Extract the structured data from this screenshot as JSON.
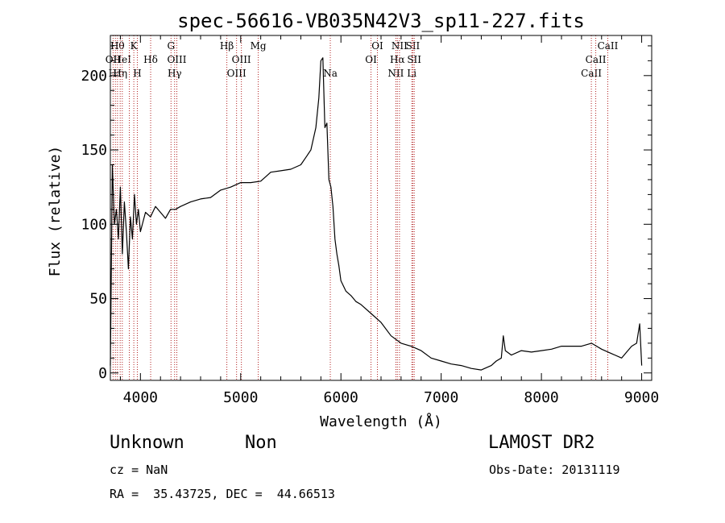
{
  "chart_data": {
    "type": "line",
    "title": "spec-56616-VB035N42V3_sp11-227.fits",
    "xlabel": "Wavelength (Å)",
    "ylabel": "Flux (relative)",
    "xlim": [
      3700,
      9100
    ],
    "ylim": [
      -5,
      227
    ],
    "xticks": [
      4000,
      5000,
      6000,
      7000,
      8000,
      9000
    ],
    "xtick_labels": [
      "4000",
      "5000",
      "6000",
      "7000",
      "8000",
      "9000"
    ],
    "yticks": [
      0,
      50,
      100,
      150,
      200
    ],
    "ytick_labels": [
      "0",
      "50",
      "100",
      "150",
      "200"
    ],
    "grid": false,
    "legend": "none",
    "line_color": "#000000",
    "marker_color": "#b22222",
    "series": [
      {
        "x": [
          3700,
          3720,
          3740,
          3760,
          3780,
          3800,
          3820,
          3840,
          3860,
          3880,
          3900,
          3920,
          3940,
          3960,
          3980,
          4000,
          4050,
          4100,
          4150,
          4200,
          4250,
          4300,
          4350,
          4400,
          4500,
          4600,
          4700,
          4800,
          4900,
          5000,
          5100,
          5200,
          5300,
          5400,
          5500,
          5600,
          5650,
          5700,
          5750,
          5780,
          5800,
          5820,
          5840,
          5860,
          5880,
          5900,
          5920,
          5940,
          5960,
          5980,
          6000,
          6050,
          6100,
          6150,
          6200,
          6300,
          6400,
          6500,
          6600,
          6700,
          6800,
          6900,
          7000,
          7100,
          7200,
          7300,
          7400,
          7500,
          7550,
          7600,
          7620,
          7640,
          7700,
          7800,
          7900,
          8000,
          8100,
          8200,
          8300,
          8400,
          8500,
          8550,
          8600,
          8700,
          8800,
          8850,
          8900,
          8950,
          8980,
          9000
        ],
        "y": [
          5,
          140,
          100,
          110,
          90,
          125,
          80,
          115,
          95,
          70,
          105,
          90,
          120,
          100,
          110,
          95,
          108,
          105,
          112,
          108,
          104,
          110,
          110,
          112,
          115,
          117,
          118,
          123,
          125,
          128,
          128,
          129,
          135,
          136,
          137,
          140,
          145,
          150,
          165,
          185,
          210,
          212,
          165,
          168,
          130,
          125,
          112,
          90,
          80,
          72,
          62,
          55,
          52,
          48,
          46,
          40,
          34,
          25,
          20,
          18,
          15,
          10,
          8,
          6,
          5,
          3,
          2,
          5,
          8,
          10,
          25,
          15,
          12,
          15,
          14,
          15,
          16,
          18,
          18,
          18,
          20,
          18,
          16,
          13,
          10,
          14,
          18,
          20,
          33,
          5
        ]
      }
    ],
    "line_markers": [
      {
        "x": 3727,
        "row": 1,
        "label": "OII"
      },
      {
        "x": 3750,
        "row": 2,
        "label": "Hτ"
      },
      {
        "x": 3771,
        "row": 0,
        "label": "Hθ"
      },
      {
        "x": 3798,
        "row": 2,
        "label": "Hη"
      },
      {
        "x": 3819,
        "row": 1,
        "label": "HeI"
      },
      {
        "x": 3889,
        "row": 2,
        "label": ""
      },
      {
        "x": 3934,
        "row": 0,
        "label": "K"
      },
      {
        "x": 3969,
        "row": 2,
        "label": "H"
      },
      {
        "x": 4102,
        "row": 1,
        "label": "Hδ"
      },
      {
        "x": 4305,
        "row": 0,
        "label": "G"
      },
      {
        "x": 4341,
        "row": 2,
        "label": "Hγ"
      },
      {
        "x": 4363,
        "row": 1,
        "label": "OIII"
      },
      {
        "x": 4862,
        "row": 0,
        "label": "Hβ"
      },
      {
        "x": 4959,
        "row": 2,
        "label": "OIII"
      },
      {
        "x": 5007,
        "row": 1,
        "label": "OIII"
      },
      {
        "x": 5175,
        "row": 0,
        "label": "Mg"
      },
      {
        "x": 5894,
        "row": 2,
        "label": "Na"
      },
      {
        "x": 6300,
        "row": 1,
        "label": "OI"
      },
      {
        "x": 6364,
        "row": 0,
        "label": "OI"
      },
      {
        "x": 6548,
        "row": 2,
        "label": "NII"
      },
      {
        "x": 6563,
        "row": 1,
        "label": "Hα"
      },
      {
        "x": 6584,
        "row": 0,
        "label": "NII"
      },
      {
        "x": 6707,
        "row": 2,
        "label": "Li"
      },
      {
        "x": 6717,
        "row": 0,
        "label": "SII"
      },
      {
        "x": 6731,
        "row": 1,
        "label": "SII"
      },
      {
        "x": 8498,
        "row": 2,
        "label": "CaII"
      },
      {
        "x": 8542,
        "row": 1,
        "label": "CaII"
      },
      {
        "x": 8662,
        "row": 0,
        "label": "CaII"
      }
    ]
  },
  "info": {
    "object_class": "Unknown",
    "object_subclass": "Non",
    "survey": "LAMOST DR2",
    "redshift": "cz = NaN",
    "obs_date": "Obs-Date: 20131119",
    "coordinates": "RA =  35.43725, DEC =  44.66513"
  }
}
